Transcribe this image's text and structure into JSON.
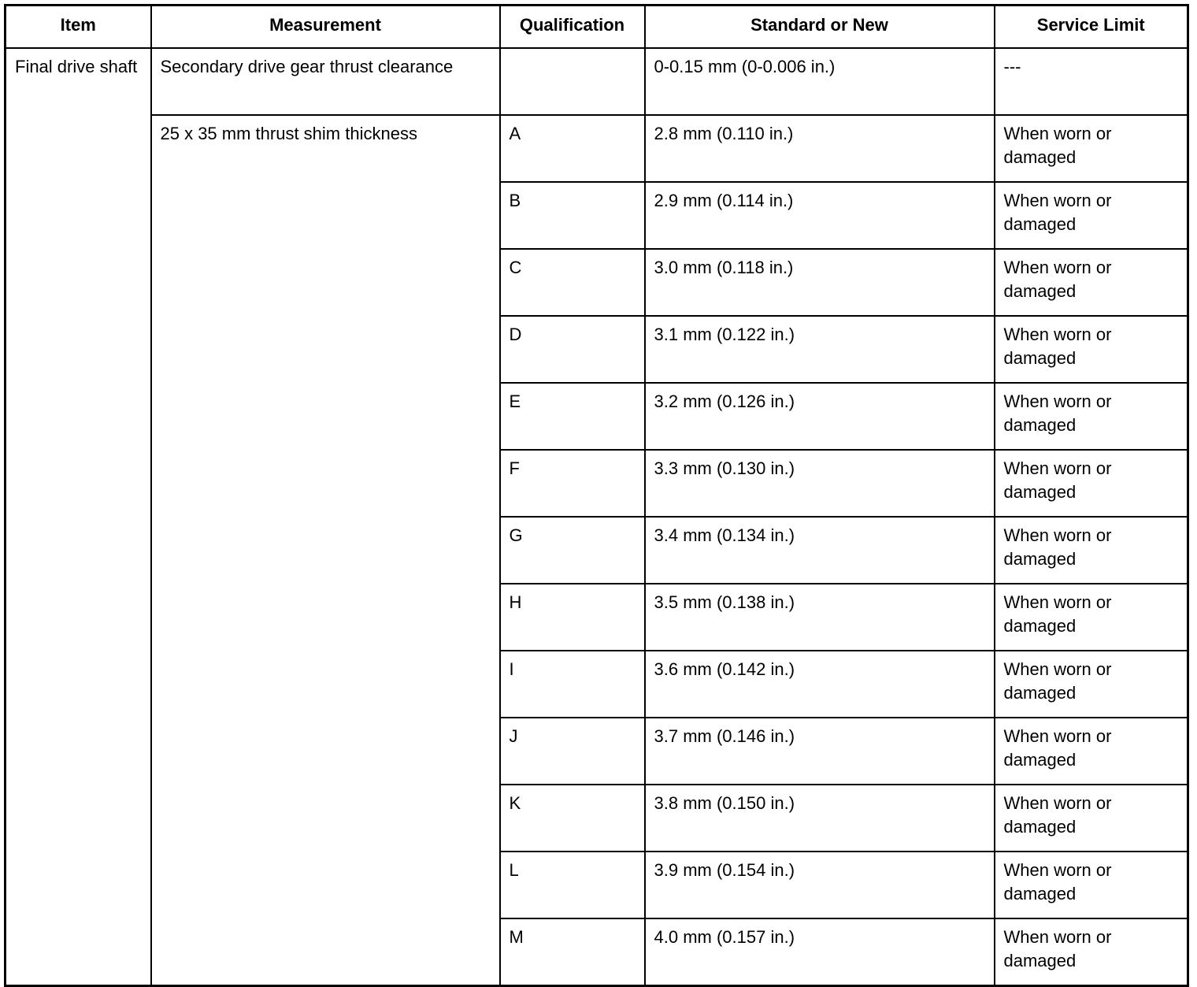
{
  "headers": [
    "Item",
    "Measurement",
    "Qualification",
    "Standard or New",
    "Service Limit"
  ],
  "item": "Final drive shaft",
  "first_row": {
    "measurement": "Secondary drive gear thrust clearance",
    "qualification": "",
    "standard": "0-0.15 mm (0-0.006 in.)",
    "limit": "---"
  },
  "shim_measurement": "25 x 35 mm thrust shim thickness",
  "shims": [
    {
      "q": "A",
      "std": "2.8 mm (0.110 in.)",
      "limit": "When worn or damaged"
    },
    {
      "q": "B",
      "std": "2.9 mm (0.114 in.)",
      "limit": "When worn or damaged"
    },
    {
      "q": "C",
      "std": "3.0 mm (0.118 in.)",
      "limit": "When worn or damaged"
    },
    {
      "q": "D",
      "std": "3.1 mm (0.122 in.)",
      "limit": "When worn or damaged"
    },
    {
      "q": "E",
      "std": "3.2 mm (0.126 in.)",
      "limit": "When worn or damaged"
    },
    {
      "q": "F",
      "std": "3.3 mm (0.130 in.)",
      "limit": "When worn or damaged"
    },
    {
      "q": "G",
      "std": "3.4 mm (0.134 in.)",
      "limit": "When worn or damaged"
    },
    {
      "q": "H",
      "std": "3.5 mm (0.138 in.)",
      "limit": "When worn or damaged"
    },
    {
      "q": "I",
      "std": "3.6 mm (0.142 in.)",
      "limit": "When worn or damaged"
    },
    {
      "q": "J",
      "std": "3.7 mm (0.146 in.)",
      "limit": "When worn or damaged"
    },
    {
      "q": "K",
      "std": "3.8 mm (0.150 in.)",
      "limit": "When worn or damaged"
    },
    {
      "q": "L",
      "std": "3.9 mm (0.154 in.)",
      "limit": "When worn or damaged"
    },
    {
      "q": "M",
      "std": "4.0 mm (0.157 in.)",
      "limit": "When worn or damaged"
    }
  ]
}
